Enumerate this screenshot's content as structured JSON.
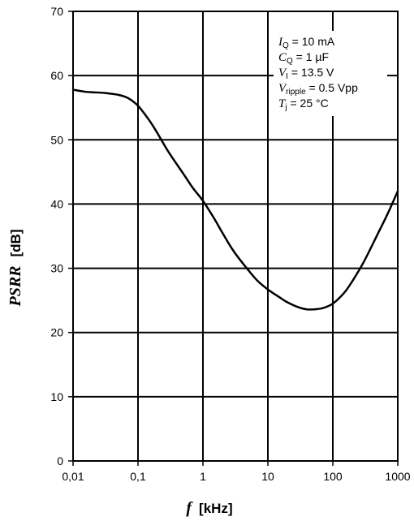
{
  "chart_data": {
    "type": "line",
    "x_scale": "log",
    "xlabel": {
      "var": "f",
      "unit": "[kHz]"
    },
    "ylabel": {
      "var": "PSRR",
      "unit": "[dB]"
    },
    "xlim": [
      0.01,
      1000
    ],
    "ylim": [
      0,
      70
    ],
    "x_ticks": [
      0.01,
      0.1,
      1,
      10,
      100,
      1000
    ],
    "x_tick_labels": [
      "0,01",
      "0,1",
      "1",
      "10",
      "100",
      "1000"
    ],
    "y_ticks": [
      0,
      10,
      20,
      30,
      40,
      50,
      60,
      70
    ],
    "y_tick_labels": [
      "0",
      "10",
      "20",
      "30",
      "40",
      "50",
      "60",
      "70"
    ],
    "grid": true,
    "series": [
      {
        "color": "#000000",
        "x": [
          0.01,
          0.015,
          0.02,
          0.03,
          0.05,
          0.07,
          0.1,
          0.15,
          0.2,
          0.3,
          0.5,
          0.7,
          1,
          1.5,
          2,
          3,
          5,
          7,
          10,
          15,
          20,
          30,
          40,
          50,
          70,
          100,
          150,
          200,
          300,
          500,
          700,
          1000
        ],
        "y": [
          57.8,
          57.5,
          57.4,
          57.3,
          57.0,
          56.5,
          55.3,
          53.0,
          51.0,
          48.0,
          44.7,
          42.5,
          40.5,
          37.7,
          35.5,
          32.6,
          29.7,
          28.0,
          26.7,
          25.5,
          24.7,
          23.9,
          23.6,
          23.6,
          23.8,
          24.5,
          26.2,
          28.0,
          31.0,
          35.5,
          38.5,
          42.0
        ]
      }
    ],
    "annotations": [
      {
        "var": "I",
        "sub": "Q",
        "text": " = 10 mA"
      },
      {
        "var": "C",
        "sub": "Q",
        "text": " = 1 µF"
      },
      {
        "var": "V",
        "sub": "I",
        "text": " = 13.5 V"
      },
      {
        "var": "V",
        "sub": "ripple",
        "text": " = 0.5 Vpp"
      },
      {
        "var": "T",
        "sub": "j",
        "text": " = 25 °C"
      }
    ]
  }
}
